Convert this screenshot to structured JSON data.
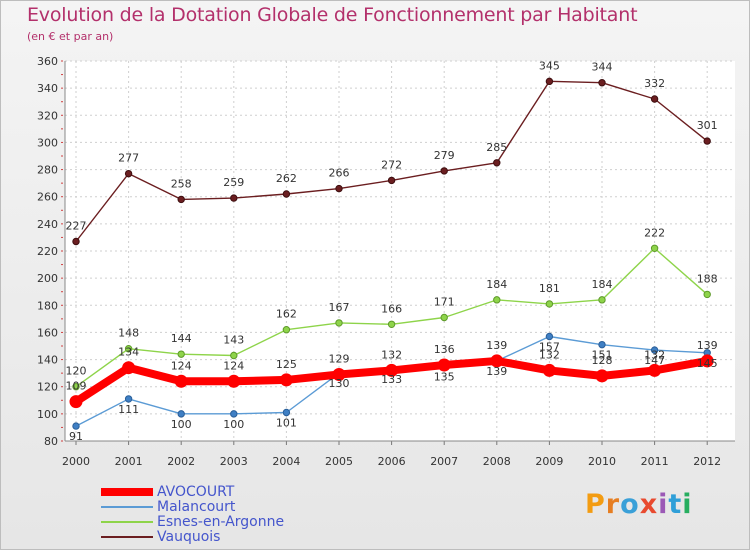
{
  "title": "Evolution de la Dotation Globale de Fonctionnement par Habitant",
  "subtitle": "(en € et par an)",
  "logo": {
    "text": "Proxiti",
    "colors": [
      "#f39c12",
      "#e67e22",
      "#3aa0d8",
      "#e84a2f",
      "#9b59b6",
      "#2f9fd8",
      "#27ae60"
    ]
  },
  "chart_data": {
    "type": "line",
    "title": "Evolution de la Dotation Globale de Fonctionnement par Habitant",
    "subtitle": "(en € et par an)",
    "xlabel": "",
    "ylabel": "",
    "ylim": [
      80,
      360
    ],
    "yticks": [
      80,
      100,
      120,
      140,
      160,
      180,
      200,
      220,
      240,
      260,
      280,
      300,
      320,
      340,
      360
    ],
    "x": [
      "2000",
      "2001",
      "2002",
      "2003",
      "2004",
      "2005",
      "2006",
      "2007",
      "2008",
      "2009",
      "2010",
      "2011",
      "2012"
    ],
    "grid": true,
    "legend_position": "bottom-left",
    "series": [
      {
        "name": "AVOCOURT",
        "color": "#ff0000",
        "values": [
          109,
          134,
          124,
          124,
          125,
          129,
          132,
          136,
          139,
          132,
          128,
          132,
          139
        ]
      },
      {
        "name": "Malancourt",
        "color": "#5b9bd5",
        "values": [
          91,
          111,
          100,
          100,
          101,
          130,
          133,
          135,
          139,
          157,
          151,
          147,
          145
        ]
      },
      {
        "name": "Esnes-en-Argonne",
        "color": "#8ed44a",
        "values": [
          120,
          148,
          144,
          143,
          162,
          167,
          166,
          171,
          184,
          181,
          184,
          222,
          188
        ]
      },
      {
        "name": "Vauquois",
        "color": "#6b1e20",
        "values": [
          227,
          277,
          258,
          259,
          262,
          266,
          272,
          279,
          285,
          345,
          344,
          332,
          301
        ]
      }
    ]
  }
}
